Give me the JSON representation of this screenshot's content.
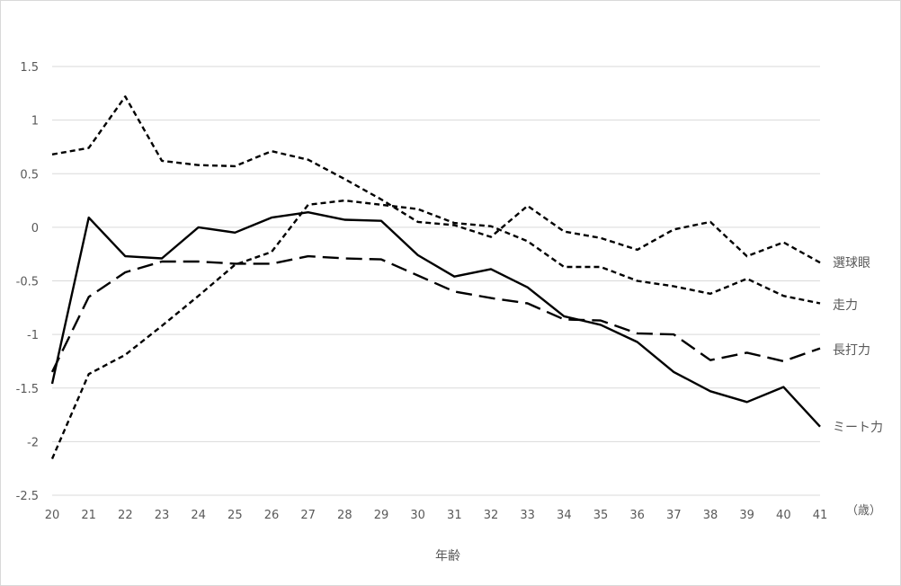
{
  "chart_data": {
    "type": "line",
    "title": "",
    "xlabel": "年齢",
    "x_unit_label": "（歳）",
    "ylabel": "",
    "ylim": [
      -2.5,
      1.5
    ],
    "yticks": [
      1.5,
      1,
      0.5,
      0,
      -0.5,
      -1,
      -1.5,
      -2,
      -2.5
    ],
    "ytick_labels": [
      "1.5",
      "1",
      "0.5",
      "0",
      "-0.5",
      "-1",
      "-1.5",
      "-2",
      "-2.5"
    ],
    "x": [
      20,
      21,
      22,
      23,
      24,
      25,
      26,
      27,
      28,
      29,
      30,
      31,
      32,
      33,
      34,
      35,
      36,
      37,
      38,
      39,
      40,
      41
    ],
    "x_labels": [
      "20",
      "21",
      "22",
      "23",
      "24",
      "25",
      "26",
      "27",
      "28",
      "29",
      "30",
      "31",
      "32",
      "33",
      "34",
      "35",
      "36",
      "37",
      "38",
      "39",
      "40",
      "41"
    ],
    "grid": true,
    "legend_position": "right, labels at line ends",
    "series": [
      {
        "name": "選球眼",
        "style": "short-dash",
        "values": [
          0.68,
          0.74,
          1.22,
          0.62,
          0.58,
          0.57,
          0.71,
          0.63,
          0.45,
          0.26,
          0.05,
          0.02,
          -0.09,
          0.2,
          -0.04,
          -0.1,
          -0.21,
          -0.02,
          0.05,
          -0.27,
          -0.14,
          -0.33
        ]
      },
      {
        "name": "走力",
        "style": "short-dash",
        "values": [
          -2.16,
          -1.37,
          -1.19,
          -0.92,
          -0.64,
          -0.35,
          -0.23,
          0.21,
          0.25,
          0.21,
          0.17,
          0.04,
          0.01,
          -0.13,
          -0.37,
          -0.37,
          -0.5,
          -0.55,
          -0.62,
          -0.48,
          -0.64,
          -0.71
        ]
      },
      {
        "name": "長打力",
        "style": "long-dash",
        "values": [
          -1.35,
          -0.65,
          -0.42,
          -0.32,
          -0.32,
          -0.34,
          -0.34,
          -0.27,
          -0.29,
          -0.3,
          -0.45,
          -0.6,
          -0.66,
          -0.71,
          -0.86,
          -0.87,
          -0.99,
          -1.0,
          -1.24,
          -1.17,
          -1.25,
          -1.13
        ]
      },
      {
        "name": "ミート力",
        "style": "solid",
        "values": [
          -1.46,
          0.09,
          -0.27,
          -0.29,
          0.0,
          -0.05,
          0.09,
          0.14,
          0.07,
          0.06,
          -0.26,
          -0.46,
          -0.39,
          -0.56,
          -0.83,
          -0.91,
          -1.07,
          -1.35,
          -1.53,
          -1.63,
          -1.49,
          -1.86
        ]
      }
    ]
  }
}
